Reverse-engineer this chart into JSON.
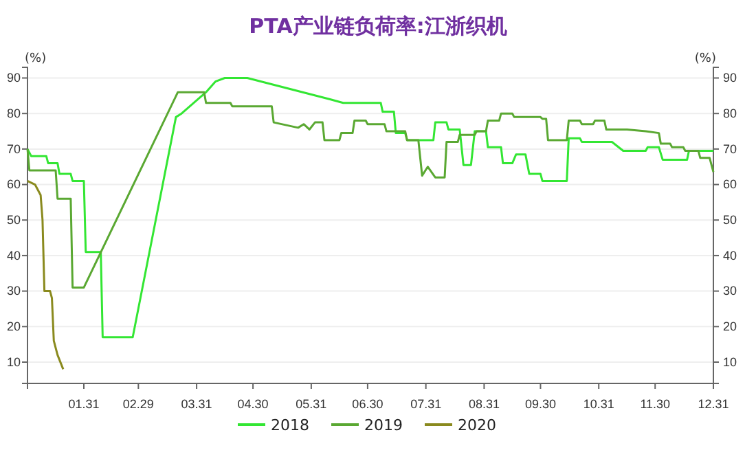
{
  "chart_data": {
    "type": "line",
    "title": "PTA产业链负荷率:江浙织机",
    "ylabel": "(%)",
    "y2label": "(%)",
    "xlim": [
      "--01-01",
      "--12-31"
    ],
    "xticks": [
      {
        "value": "--01-31",
        "label": "01.31"
      },
      {
        "value": "--02-29",
        "label": "02.29"
      },
      {
        "value": "--03-31",
        "label": "03.31"
      },
      {
        "value": "--04-30",
        "label": "04.30"
      },
      {
        "value": "--05-31",
        "label": "05.31"
      },
      {
        "value": "--06-30",
        "label": "06.30"
      },
      {
        "value": "--07-31",
        "label": "07.31"
      },
      {
        "value": "--08-31",
        "label": "08.31"
      },
      {
        "value": "--09-30",
        "label": "09.30"
      },
      {
        "value": "--10-31",
        "label": "10.31"
      },
      {
        "value": "--11-30",
        "label": "11.30"
      },
      {
        "value": "--12-31",
        "label": "12.31"
      }
    ],
    "ylim": [
      4,
      93
    ],
    "yticks": [
      10,
      20,
      30,
      40,
      50,
      60,
      70,
      80,
      90
    ],
    "y2lim": [
      4,
      93
    ],
    "y2ticks": [
      10,
      20,
      30,
      40,
      50,
      60,
      70,
      80,
      90
    ],
    "grid": "y",
    "legend": "bottom",
    "line_style": "solid",
    "marker": "none",
    "series": [
      {
        "name": "2018",
        "color": "#33e633",
        "x": [
          "--01-01",
          "--01-03",
          "--01-11",
          "--01-12",
          "--01-17",
          "--01-18",
          "--01-24",
          "--01-25",
          "--01-31",
          "--02-01",
          "--02-09",
          "--02-10",
          "--02-26",
          "--03-20",
          "--03-23",
          "--04-05",
          "--04-10",
          "--04-15",
          "--04-27",
          "--06-10",
          "--06-17",
          "--07-07",
          "--07-08",
          "--07-14",
          "--07-15",
          "--07-20",
          "--07-21",
          "--08-04",
          "--08-05",
          "--08-11",
          "--08-12",
          "--08-18",
          "--08-20",
          "--08-24",
          "--08-26",
          "--09-01",
          "--09-02",
          "--09-09",
          "--09-10",
          "--09-15",
          "--09-17",
          "--09-22",
          "--09-24",
          "--09-30",
          "--10-01",
          "--10-14",
          "--10-15",
          "--10-21",
          "--10-22",
          "--11-07",
          "--11-13",
          "--11-25",
          "--11-26",
          "--12-02",
          "--12-04",
          "--12-17",
          "--12-18",
          "--12-31"
        ],
        "values": [
          70,
          68,
          68,
          66,
          66,
          63,
          63,
          61,
          61,
          41,
          41,
          17,
          17,
          79,
          80,
          86,
          89,
          90,
          90,
          84,
          83,
          83,
          80.5,
          80.5,
          74.5,
          74.5,
          72.5,
          72.5,
          77.5,
          77.5,
          75.5,
          75.5,
          65.5,
          65.5,
          75,
          75,
          70.5,
          70.5,
          66,
          66,
          68.5,
          68.5,
          63,
          63,
          61,
          61,
          73,
          73,
          72,
          72,
          69.5,
          69.5,
          70.5,
          70.5,
          67,
          67,
          69.5,
          69.5
        ]
      },
      {
        "name": "2019",
        "color": "#5aa832",
        "x": [
          "--01-01",
          "--01-02",
          "--01-16",
          "--01-17",
          "--01-24",
          "--01-25",
          "--01-31",
          "--03-21",
          "--04-04",
          "--04-05",
          "--04-18",
          "--04-19",
          "--05-10",
          "--05-11",
          "--05-24",
          "--05-27",
          "--05-30",
          "--06-02",
          "--06-06",
          "--06-07",
          "--06-15",
          "--06-16",
          "--06-22",
          "--06-23",
          "--06-29",
          "--06-30",
          "--07-09",
          "--07-10",
          "--07-20",
          "--07-21",
          "--07-27",
          "--07-29",
          "--08-01",
          "--08-05",
          "--08-10",
          "--08-11",
          "--08-17",
          "--08-18",
          "--08-26",
          "--08-27",
          "--09-01",
          "--09-02",
          "--09-08",
          "--09-09",
          "--09-15",
          "--09-16",
          "--09-30",
          "--10-01",
          "--10-03",
          "--10-04",
          "--10-14",
          "--10-15",
          "--10-21",
          "--10-22",
          "--10-28",
          "--10-29",
          "--11-03",
          "--11-04",
          "--11-15",
          "--11-25",
          "--12-02",
          "--12-03",
          "--12-08",
          "--12-09",
          "--12-15",
          "--12-16",
          "--12-23",
          "--12-24",
          "--12-29",
          "--12-30",
          "--12-31"
        ],
        "values": [
          70,
          64,
          64,
          56,
          56,
          31,
          31,
          86,
          86,
          83,
          83,
          82,
          82,
          77.5,
          76,
          77,
          75.5,
          77.5,
          77.5,
          72.5,
          72.5,
          74.5,
          74.5,
          78,
          78,
          77,
          77,
          75,
          75,
          72.5,
          72.5,
          62.5,
          65,
          62,
          62,
          72,
          72,
          74,
          74,
          75,
          75,
          78,
          78,
          80,
          80,
          79,
          79,
          78.5,
          78.5,
          72.5,
          72.5,
          78,
          78,
          77,
          77,
          78,
          78,
          75.5,
          75.5,
          75,
          74.5,
          71.5,
          71.5,
          70.5,
          70.5,
          69.5,
          69.5,
          67.5,
          67.5,
          65.5,
          63.5
        ]
      },
      {
        "name": "2020",
        "color": "#8a8a1e",
        "x": [
          "--01-01",
          "--01-05",
          "--01-08",
          "--01-09",
          "--01-10",
          "--01-13",
          "--01-14",
          "--01-15",
          "--01-17",
          "--01-20"
        ],
        "values": [
          61,
          60,
          57,
          50,
          30,
          30,
          28,
          16,
          12,
          8
        ]
      }
    ]
  }
}
